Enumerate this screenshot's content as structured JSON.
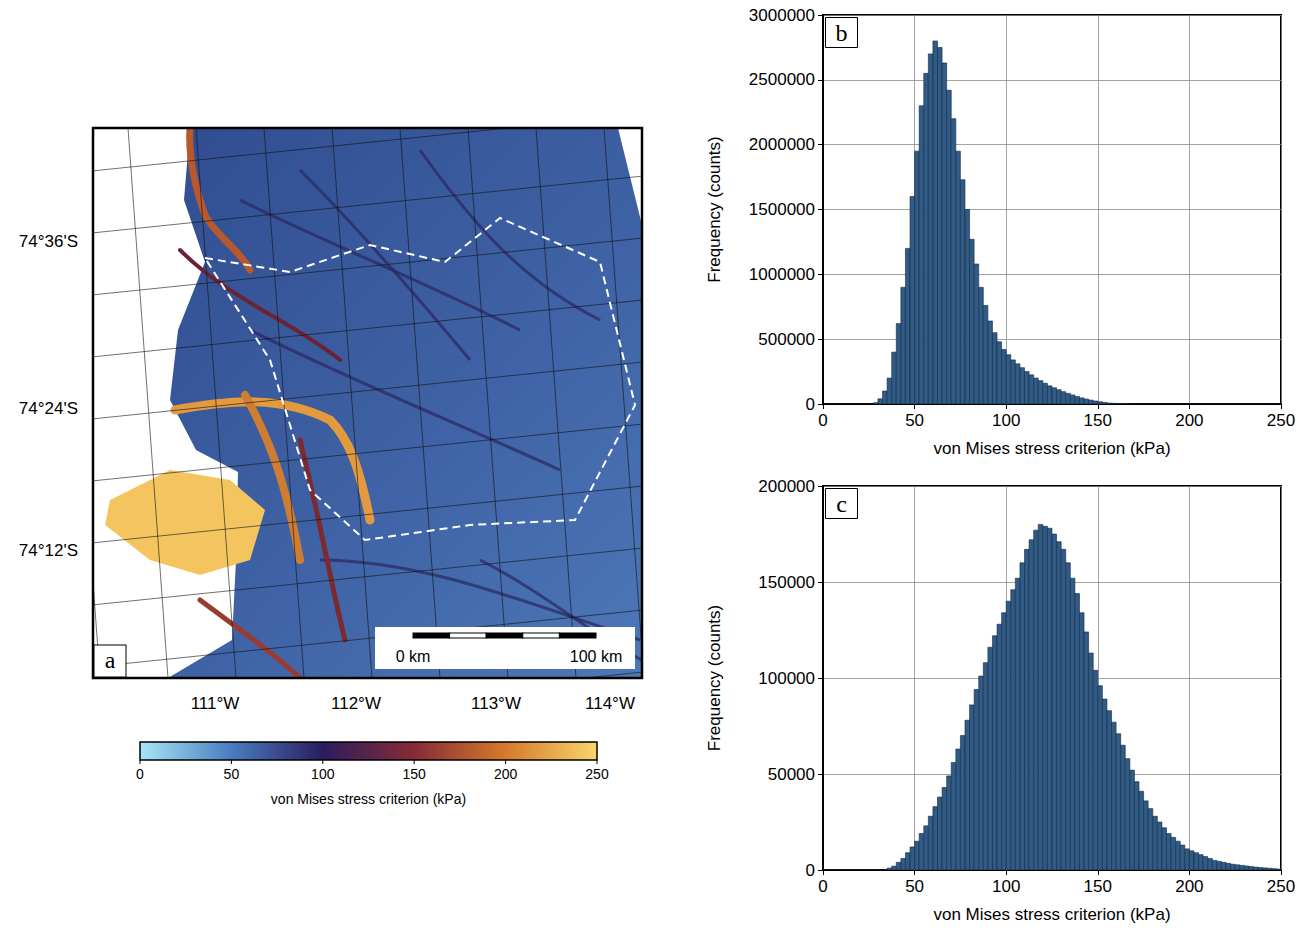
{
  "chart_data": [
    {
      "type": "map",
      "panel": "a",
      "latitude_labels": [
        "74°36'S",
        "74°24'S",
        "74°12'S"
      ],
      "longitude_labels": [
        "111°W",
        "112°W",
        "113°W",
        "114°W"
      ],
      "scale_bar": {
        "labels": [
          "0 km",
          "100 km"
        ]
      },
      "colorbar": {
        "label": "von Mises stress criterion (kPa)",
        "range": [
          0,
          250
        ],
        "ticks": [
          0,
          50,
          100,
          150,
          200,
          250
        ],
        "colors": [
          "#a8e6f5",
          "#4a7cc0",
          "#2a1d5e",
          "#862b36",
          "#d67a2c",
          "#f9d56c"
        ]
      }
    },
    {
      "type": "histogram",
      "panel": "b",
      "color": "#2f5b86",
      "xlabel": "von Mises stress criterion (kPa)",
      "ylabel": "Frequency (counts)",
      "xlim": [
        0,
        250
      ],
      "ylim": [
        0,
        3000000
      ],
      "xticks": [
        0,
        50,
        100,
        150,
        200,
        250
      ],
      "yticks": [
        0,
        500000,
        1000000,
        1500000,
        2000000,
        2500000,
        3000000
      ],
      "grid": true,
      "bins": [
        0,
        2.5,
        5,
        7.5,
        10,
        12.5,
        15,
        17.5,
        20,
        22.5,
        25,
        27.5,
        30,
        32.5,
        35,
        37.5,
        40,
        42.5,
        45,
        47.5,
        50,
        52.5,
        55,
        57.5,
        60,
        62.5,
        65,
        67.5,
        70,
        72.5,
        75,
        77.5,
        80,
        82.5,
        85,
        87.5,
        90,
        92.5,
        95,
        97.5,
        100,
        102.5,
        105,
        107.5,
        110,
        112.5,
        115,
        117.5,
        120,
        122.5,
        125,
        127.5,
        130,
        132.5,
        135,
        137.5,
        140,
        142.5,
        145,
        147.5,
        150,
        152.5,
        155,
        157.5,
        160,
        162.5,
        165,
        167.5,
        170,
        172.5,
        175,
        177.5,
        180,
        182.5,
        185,
        187.5,
        190,
        192.5,
        195,
        197.5,
        200,
        202.5,
        205,
        207.5,
        210,
        212.5,
        215,
        217.5,
        220,
        222.5,
        225,
        227.5,
        230,
        232.5,
        235,
        237.5,
        240,
        242.5,
        245,
        247.5,
        250
      ],
      "counts": [
        0,
        0,
        0,
        0,
        0,
        0,
        0,
        0,
        0,
        0,
        0,
        10000,
        40000,
        100000,
        200000,
        400000,
        620000,
        900000,
        1200000,
        1600000,
        1950000,
        2300000,
        2550000,
        2700000,
        2800000,
        2750000,
        2630000,
        2420000,
        2200000,
        1950000,
        1730000,
        1500000,
        1270000,
        1080000,
        900000,
        760000,
        640000,
        550000,
        480000,
        420000,
        380000,
        340000,
        310000,
        280000,
        250000,
        225000,
        200000,
        180000,
        160000,
        140000,
        125000,
        110000,
        95000,
        82000,
        70000,
        58000,
        47000,
        38000,
        30000,
        23000,
        17000,
        12000,
        8000,
        5000,
        3000,
        2000,
        1000,
        500,
        300,
        200,
        100,
        0,
        0,
        0,
        0,
        0,
        0,
        0,
        0,
        0,
        0,
        0,
        0,
        0,
        0,
        0,
        0,
        0,
        0,
        0,
        0,
        0,
        0,
        0,
        0,
        0,
        0,
        0,
        0,
        0
      ]
    },
    {
      "type": "histogram",
      "panel": "c",
      "color": "#2f5b86",
      "xlabel": "von Mises stress criterion (kPa)",
      "ylabel": "Frequency (counts)",
      "xlim": [
        0,
        250
      ],
      "ylim": [
        0,
        200000
      ],
      "xticks": [
        0,
        50,
        100,
        150,
        200,
        250
      ],
      "yticks": [
        0,
        50000,
        100000,
        150000,
        200000
      ],
      "grid": true,
      "bins": [
        0,
        2.5,
        5,
        7.5,
        10,
        12.5,
        15,
        17.5,
        20,
        22.5,
        25,
        27.5,
        30,
        32.5,
        35,
        37.5,
        40,
        42.5,
        45,
        47.5,
        50,
        52.5,
        55,
        57.5,
        60,
        62.5,
        65,
        67.5,
        70,
        72.5,
        75,
        77.5,
        80,
        82.5,
        85,
        87.5,
        90,
        92.5,
        95,
        97.5,
        100,
        102.5,
        105,
        107.5,
        110,
        112.5,
        115,
        117.5,
        120,
        122.5,
        125,
        127.5,
        130,
        132.5,
        135,
        137.5,
        140,
        142.5,
        145,
        147.5,
        150,
        152.5,
        155,
        157.5,
        160,
        162.5,
        165,
        167.5,
        170,
        172.5,
        175,
        177.5,
        180,
        182.5,
        185,
        187.5,
        190,
        192.5,
        195,
        197.5,
        200,
        202.5,
        205,
        207.5,
        210,
        212.5,
        215,
        217.5,
        220,
        222.5,
        225,
        227.5,
        230,
        232.5,
        235,
        237.5,
        240,
        242.5,
        245,
        247.5,
        250
      ],
      "counts": [
        0,
        0,
        0,
        0,
        0,
        0,
        0,
        0,
        0,
        0,
        0,
        0,
        0,
        0,
        1000,
        2000,
        4000,
        6000,
        9000,
        12000,
        15000,
        19000,
        23000,
        28000,
        33000,
        38000,
        43000,
        49000,
        56000,
        63000,
        70000,
        78000,
        86000,
        94000,
        101000,
        108000,
        116000,
        122000,
        128000,
        134000,
        140000,
        146000,
        152000,
        160000,
        167000,
        172000,
        177000,
        180000,
        179000,
        178000,
        175000,
        171000,
        167000,
        160000,
        152000,
        144000,
        134000,
        124000,
        113000,
        104000,
        96000,
        89000,
        83000,
        77000,
        71000,
        65000,
        58000,
        52000,
        46000,
        41000,
        36000,
        32000,
        28000,
        25000,
        22000,
        19000,
        17000,
        15000,
        13000,
        11000,
        10000,
        9000,
        8000,
        7000,
        6000,
        5000,
        4500,
        4000,
        3500,
        3000,
        2700,
        2400,
        2100,
        1800,
        1500,
        1300,
        1100,
        900,
        700,
        500
      ]
    }
  ]
}
